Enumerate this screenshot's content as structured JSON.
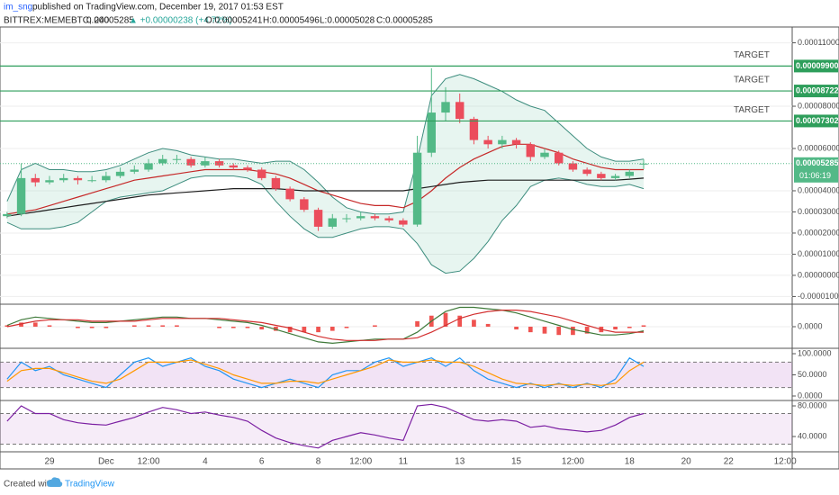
{
  "header": {
    "publisher": "im_sng",
    "published": "published on TradingView.com, December 19, 2017 01:53 EST",
    "symbol": "BITTREX:MEMEBTC, 240",
    "price": "0.00005285",
    "change": "▲ +0.00000238 (+4.72%)",
    "open": "O:0.00005241",
    "high": "H:0.00005496",
    "low": "L:0.00005028",
    "close": "C:0.00005285"
  },
  "footer": {
    "created": "Created with",
    "brand": "TradingView"
  },
  "chart_data": [
    {
      "type": "candlestick",
      "categories": [
        null,
        null,
        null,
        "29",
        null,
        null,
        null,
        "Dec",
        null,
        null,
        "12:00",
        null,
        null,
        null,
        "4",
        null,
        null,
        null,
        "6",
        null,
        null,
        null,
        "8",
        null,
        null,
        "12:00",
        null,
        null,
        "11",
        null,
        null,
        null,
        "13",
        null,
        null,
        null,
        "15",
        null,
        null,
        null,
        "12:00",
        null,
        null,
        null,
        "18",
        null,
        null,
        null,
        "20",
        null,
        null,
        "22",
        null,
        null,
        null,
        "12:00"
      ],
      "open": [
        2.8e-05,
        2.9e-05,
        4.6e-05,
        4.4e-05,
        4.5e-05,
        4.6e-05,
        4.5e-05,
        4.5e-05,
        4.7e-05,
        4.9e-05,
        5e-05,
        5.3e-05,
        5.5e-05,
        5.5e-05,
        5.2e-05,
        5.4e-05,
        5.2e-05,
        5.1e-05,
        5e-05,
        4.6e-05,
        4.1e-05,
        3.6e-05,
        3.1e-05,
        2.3e-05,
        2.7e-05,
        2.7e-05,
        2.8e-05,
        2.7e-05,
        2.6e-05,
        2.4e-05,
        5.8e-05,
        7.7e-05,
        8.2e-05,
        7.4e-05,
        6.4e-05,
        6.2e-05,
        6.4e-05,
        6.2e-05,
        5.6e-05,
        5.8e-05,
        5.3e-05,
        5e-05,
        4.8e-05,
        4.6e-05,
        4.7e-05,
        5.241e-05,
        null,
        null,
        null,
        null,
        null,
        null,
        null,
        null,
        null,
        null
      ],
      "high": [
        3e-05,
        5.3e-05,
        4.8e-05,
        4.7e-05,
        4.8e-05,
        4.7e-05,
        4.7e-05,
        4.9e-05,
        5.1e-05,
        5.2e-05,
        5.5e-05,
        5.7e-05,
        5.7e-05,
        5.6e-05,
        5.6e-05,
        5.5e-05,
        5.3e-05,
        5.2e-05,
        5.1e-05,
        4.7e-05,
        4.2e-05,
        3.7e-05,
        3.2e-05,
        2.9e-05,
        2.9e-05,
        3e-05,
        2.9e-05,
        2.8e-05,
        2.7e-05,
        6.6e-05,
        9.8e-05,
        8.9e-05,
        8.6e-05,
        7.5e-05,
        6.6e-05,
        6.6e-05,
        6.5e-05,
        6.3e-05,
        6e-05,
        5.9e-05,
        5.4e-05,
        5.1e-05,
        4.9e-05,
        4.8e-05,
        5e-05,
        5.496e-05,
        null,
        null,
        null,
        null,
        null,
        null,
        null,
        null,
        null,
        null
      ],
      "low": [
        2.7e-05,
        2.8e-05,
        4.2e-05,
        4.3e-05,
        4.4e-05,
        4.3e-05,
        4.4e-05,
        4.4e-05,
        4.6e-05,
        4.8e-05,
        4.9e-05,
        5.2e-05,
        5.3e-05,
        5.1e-05,
        5.1e-05,
        5.1e-05,
        5e-05,
        4.9e-05,
        4.5e-05,
        4e-05,
        3.5e-05,
        3e-05,
        2.1e-05,
        2.2e-05,
        2.5e-05,
        2.6e-05,
        2.6e-05,
        2.5e-05,
        2.3e-05,
        2.3e-05,
        5.6e-05,
        7.3e-05,
        7.2e-05,
        6.2e-05,
        6e-05,
        6e-05,
        6e-05,
        5.4e-05,
        5.5e-05,
        5.2e-05,
        4.9e-05,
        4.7e-05,
        4.5e-05,
        4.5e-05,
        4.6e-05,
        5.028e-05,
        null,
        null,
        null,
        null,
        null,
        null,
        null,
        null,
        null,
        null
      ],
      "close": [
        2.9e-05,
        4.6e-05,
        4.4e-05,
        4.5e-05,
        4.6e-05,
        4.5e-05,
        4.5e-05,
        4.7e-05,
        4.9e-05,
        5e-05,
        5.3e-05,
        5.5e-05,
        5.5e-05,
        5.2e-05,
        5.4e-05,
        5.2e-05,
        5.1e-05,
        5e-05,
        4.6e-05,
        4.1e-05,
        3.6e-05,
        3.1e-05,
        2.3e-05,
        2.7e-05,
        2.7e-05,
        2.8e-05,
        2.7e-05,
        2.6e-05,
        2.4e-05,
        5.8e-05,
        7.7e-05,
        8.2e-05,
        7.4e-05,
        6.4e-05,
        6.2e-05,
        6.4e-05,
        6.2e-05,
        5.6e-05,
        5.8e-05,
        5.3e-05,
        5e-05,
        4.8e-05,
        4.6e-05,
        4.7e-05,
        4.9e-05,
        5.285e-05,
        null,
        null,
        null,
        null,
        null,
        null,
        null,
        null,
        null,
        null
      ],
      "up_color": "#53b987",
      "down_color": "#eb4d5c",
      "bollinger": {
        "color": "#3d8d7e",
        "fill": "rgba(120,200,170,0.18)",
        "upper": [
          3.5e-05,
          5e-05,
          5.3e-05,
          5e-05,
          5e-05,
          4.9e-05,
          4.9e-05,
          5e-05,
          5.2e-05,
          5.5e-05,
          5.8e-05,
          6e-05,
          5.9e-05,
          5.7e-05,
          5.6e-05,
          5.5e-05,
          5.5e-05,
          5.4e-05,
          5.3e-05,
          5.4e-05,
          5.4e-05,
          5e-05,
          4.4e-05,
          3.7e-05,
          3.2e-05,
          3e-05,
          2.9e-05,
          2.9e-05,
          3e-05,
          5.5e-05,
          8.5e-05,
          9.3e-05,
          9.5e-05,
          9.3e-05,
          9e-05,
          8.7e-05,
          8.3e-05,
          8e-05,
          7.8e-05,
          7.2e-05,
          6.6e-05,
          6e-05,
          5.6e-05,
          5.4e-05,
          5.4e-05,
          5.5e-05,
          null,
          null,
          null,
          null,
          null,
          null,
          null,
          null,
          null,
          null
        ],
        "lower": [
          2.5e-05,
          2.2e-05,
          2.2e-05,
          2.2e-05,
          2.3e-05,
          2.5e-05,
          3e-05,
          3.5e-05,
          3.7e-05,
          3.8e-05,
          3.9e-05,
          4e-05,
          4.3e-05,
          4.6e-05,
          4.7e-05,
          4.7e-05,
          4.7e-05,
          4.6e-05,
          4.3e-05,
          3.5e-05,
          2.8e-05,
          2.2e-05,
          1.8e-05,
          1.8e-05,
          2e-05,
          2.2e-05,
          2.3e-05,
          2.3e-05,
          2.2e-05,
          1.5e-05,
          5e-06,
          1e-06,
          2e-06,
          8e-06,
          1.6e-05,
          2.6e-05,
          3.3e-05,
          4.2e-05,
          4.5e-05,
          4.6e-05,
          4.5e-05,
          4.3e-05,
          4.2e-05,
          4.2e-05,
          4.3e-05,
          4.1e-05,
          null,
          null,
          null,
          null,
          null,
          null,
          null,
          null,
          null,
          null
        ]
      },
      "series": [
        {
          "color": "#c62828",
          "values": [
            2.9e-05,
            3e-05,
            3.1e-05,
            3.3e-05,
            3.5e-05,
            3.7e-05,
            3.9e-05,
            4.1e-05,
            4.3e-05,
            4.5e-05,
            4.6e-05,
            4.7e-05,
            4.8e-05,
            4.9e-05,
            5e-05,
            5e-05,
            5e-05,
            5e-05,
            4.9e-05,
            4.8e-05,
            4.6e-05,
            4.3e-05,
            4e-05,
            3.8e-05,
            3.6e-05,
            3.4e-05,
            3.3e-05,
            3.3e-05,
            3.2e-05,
            3.5e-05,
            4e-05,
            4.6e-05,
            5.1e-05,
            5.5e-05,
            5.8e-05,
            6.1e-05,
            6.2e-05,
            6.2e-05,
            6e-05,
            5.8e-05,
            5.5e-05,
            5.3e-05,
            5.1e-05,
            5e-05,
            5e-05,
            5e-05,
            null,
            null,
            null,
            null,
            null,
            null,
            null,
            null,
            null,
            null
          ]
        },
        {
          "color": "#1e1e1e",
          "values": [
            2.8e-05,
            2.9e-05,
            3e-05,
            3.1e-05,
            3.2e-05,
            3.3e-05,
            3.4e-05,
            3.5e-05,
            3.6e-05,
            3.7e-05,
            3.8e-05,
            3.85e-05,
            3.9e-05,
            3.95e-05,
            4e-05,
            4.05e-05,
            4.1e-05,
            4.1e-05,
            4.1e-05,
            4.1e-05,
            4.05e-05,
            4e-05,
            4e-05,
            4e-05,
            4e-05,
            4e-05,
            4e-05,
            4e-05,
            4e-05,
            4.1e-05,
            4.2e-05,
            4.3e-05,
            4.4e-05,
            4.45e-05,
            4.5e-05,
            4.5e-05,
            4.5e-05,
            4.5e-05,
            4.5e-05,
            4.5e-05,
            4.5e-05,
            4.5e-05,
            4.5e-05,
            4.5e-05,
            4.55e-05,
            4.6e-05,
            null,
            null,
            null,
            null,
            null,
            null,
            null,
            null,
            null,
            null
          ]
        }
      ],
      "ylim": [
        -1.28e-05,
        0.0001162
      ],
      "yticks": [
        {
          "value": 0.00011,
          "label": "0.00011000"
        },
        {
          "value": 8e-05,
          "label": "0.00008000"
        },
        {
          "value": 6e-05,
          "label": "0.00006000"
        },
        {
          "value": 4e-05,
          "label": "0.00004000"
        },
        {
          "value": 3e-05,
          "label": "0.00003000"
        },
        {
          "value": 2e-05,
          "label": "0.00002000"
        },
        {
          "value": 1e-05,
          "label": "0.00001000"
        },
        {
          "value": 0,
          "label": "0.00000000"
        },
        {
          "value": -1e-05,
          "label": "-0.00001000"
        }
      ],
      "grid": true,
      "level_color": "#2e9e5b",
      "levels": [
        {
          "value": 9.9e-05,
          "label": "0.00009900",
          "text": "TARGET"
        },
        {
          "value": 8.722e-05,
          "label": "0.00008722",
          "text": "TARGET"
        },
        {
          "value": 7.302e-05,
          "label": "0.00007302",
          "text": "TARGET"
        }
      ],
      "last": {
        "value": 5.285e-05,
        "label": "0.00005285"
      },
      "last_color": "#53b987",
      "countdown": "01:06:19"
    },
    {
      "type": "line",
      "ylim": [
        -1.5e-05,
        1.5e-05
      ],
      "yticks": [
        {
          "value": 0,
          "label": "0.0000"
        }
      ],
      "grid": true,
      "series": [
        {
          "color": "#3f7a3a",
          "values": [
            1e-06,
            5e-06,
            7e-06,
            6e-06,
            5e-06,
            4e-06,
            3e-06,
            3e-06,
            4e-06,
            5e-06,
            6e-06,
            7e-06,
            7e-06,
            6e-06,
            6e-06,
            5e-06,
            4e-06,
            3e-06,
            1e-06,
            -2e-06,
            -5e-06,
            -8e-06,
            -1.1e-05,
            -1.2e-05,
            -1.1e-05,
            -1e-05,
            -9e-06,
            -9e-06,
            -9e-06,
            -4e-06,
            4e-06,
            1.1e-05,
            1.4e-05,
            1.4e-05,
            1.3e-05,
            1.2e-05,
            1e-05,
            7e-06,
            4e-06,
            1e-06,
            -2e-06,
            -4e-06,
            -6e-06,
            -6e-06,
            -5e-06,
            -3e-06
          ]
        },
        {
          "color": "#d32f2f",
          "values": [
            0,
            2e-06,
            4e-06,
            5e-06,
            5e-06,
            5e-06,
            4e-06,
            4e-06,
            4e-06,
            4e-06,
            5e-06,
            6e-06,
            6e-06,
            6e-06,
            6e-06,
            6e-06,
            5e-06,
            4e-06,
            3e-06,
            1e-06,
            -1e-06,
            -4e-06,
            -7e-06,
            -9e-06,
            -1e-05,
            -1e-05,
            -1e-05,
            -9e-06,
            -9e-06,
            -8e-06,
            -4e-06,
            1e-06,
            6e-06,
            9e-06,
            1.1e-05,
            1.2e-05,
            1.2e-05,
            1.1e-05,
            9e-06,
            7e-06,
            4e-06,
            1e-06,
            -2e-06,
            -4e-06,
            -4e-06,
            -4e-06
          ]
        }
      ],
      "histogram": {
        "color": "#ef5350",
        "values": [
          1e-06,
          3e-06,
          3e-06,
          1e-06,
          0,
          -1e-06,
          -1e-06,
          -1e-06,
          0,
          1e-06,
          1e-06,
          1e-06,
          1e-06,
          0,
          0,
          -1e-06,
          -1e-06,
          -1e-06,
          -2e-06,
          -3e-06,
          -4e-06,
          -4e-06,
          -4e-06,
          -3e-06,
          -1e-06,
          0,
          1e-06,
          0,
          0,
          4e-06,
          8e-06,
          1e-05,
          8e-06,
          5e-06,
          2e-06,
          0,
          -2e-06,
          -4e-06,
          -5e-06,
          -6e-06,
          -6e-06,
          -5e-06,
          -4e-06,
          -2e-06,
          -1e-06,
          1e-06
        ]
      }
    },
    {
      "type": "line",
      "ylim": [
        -8.5,
        108.5
      ],
      "yticks": [
        {
          "value": 100,
          "label": "100.0000"
        },
        {
          "value": 50,
          "label": "50.0000"
        },
        {
          "value": 0,
          "label": "0.0000"
        }
      ],
      "grid": false,
      "bands": [
        80,
        20
      ],
      "band_fill": "rgba(156,39,176,0.13)",
      "series": [
        {
          "color": "#2196f3",
          "values": [
            40,
            80,
            60,
            70,
            50,
            40,
            30,
            20,
            50,
            80,
            90,
            70,
            80,
            90,
            70,
            60,
            40,
            30,
            20,
            30,
            40,
            30,
            20,
            50,
            60,
            60,
            80,
            90,
            70,
            80,
            90,
            70,
            90,
            60,
            40,
            30,
            20,
            30,
            20,
            30,
            20,
            30,
            20,
            40,
            90,
            70
          ]
        },
        {
          "color": "#ff9800",
          "values": [
            35,
            60,
            65,
            65,
            55,
            45,
            35,
            30,
            40,
            60,
            80,
            80,
            80,
            85,
            75,
            65,
            50,
            40,
            30,
            30,
            35,
            35,
            30,
            40,
            50,
            60,
            70,
            85,
            80,
            80,
            85,
            80,
            80,
            70,
            55,
            40,
            30,
            28,
            25,
            28,
            25,
            28,
            25,
            30,
            60,
            80
          ]
        }
      ]
    },
    {
      "type": "line",
      "ylim": [
        22.4,
        84.7
      ],
      "yticks": [
        {
          "value": 80,
          "label": "80.0000"
        },
        {
          "value": 40,
          "label": "40.0000"
        }
      ],
      "grid": false,
      "bands": [
        70,
        30
      ],
      "band_fill": "rgba(156,39,176,0.09)",
      "series": [
        {
          "color": "#7b1fa2",
          "values": [
            60,
            80,
            70,
            70,
            62,
            58,
            56,
            55,
            60,
            65,
            72,
            78,
            75,
            70,
            72,
            68,
            65,
            60,
            48,
            38,
            32,
            28,
            25,
            35,
            40,
            45,
            42,
            38,
            35,
            80,
            82,
            78,
            70,
            62,
            60,
            62,
            60,
            52,
            54,
            50,
            48,
            46,
            48,
            55,
            65,
            70
          ]
        }
      ]
    }
  ]
}
